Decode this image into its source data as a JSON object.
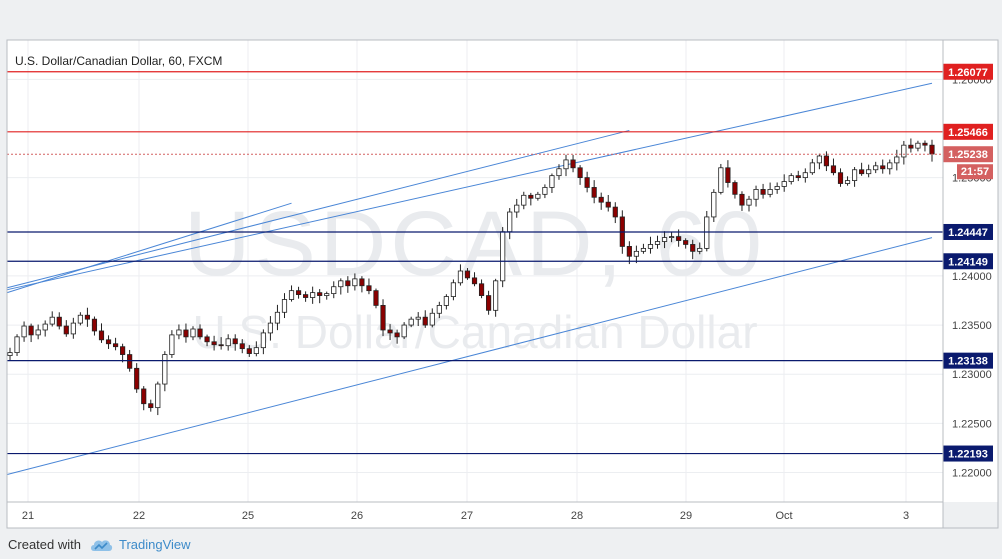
{
  "chart_data": {
    "type": "candlestick",
    "title": "U.S. Dollar/Canadian Dollar, 60, FXCM",
    "watermark": {
      "symbol": "USDCAD, 60",
      "description": "U.S. Dollar/Canadian Dollar"
    },
    "ylim": [
      1.217,
      1.264
    ],
    "y_ticks": [
      "1.22000",
      "1.22500",
      "1.23000",
      "1.23500",
      "1.24000",
      "1.25000",
      "1.26000"
    ],
    "x_ticks": [
      "21",
      "22",
      "25",
      "26",
      "27",
      "28",
      "29",
      "Oct",
      "3"
    ],
    "horizontal_levels": [
      {
        "value": 1.26077,
        "label": "1.26077",
        "color": "#e02020"
      },
      {
        "value": 1.25466,
        "label": "1.25466",
        "color": "#e02020"
      },
      {
        "value": 1.24447,
        "label": "1.24447",
        "color": "#0a1a6e"
      },
      {
        "value": 1.24149,
        "label": "1.24149",
        "color": "#0a1a6e"
      },
      {
        "value": 1.23138,
        "label": "1.23138",
        "color": "#0a1a6e"
      },
      {
        "value": 1.22193,
        "label": "1.22193",
        "color": "#0a1a6e"
      }
    ],
    "last_price": {
      "value": 1.25238,
      "label": "1.25238",
      "countdown": "21:57",
      "color": "#d46060"
    },
    "grid": true,
    "colors": {
      "bull": "#ffffff",
      "bear": "#8b0000",
      "trendline": "#4a86d6"
    },
    "series_anchors": [
      [
        0,
        1.2322
      ],
      [
        1,
        1.2338
      ],
      [
        2,
        1.2349
      ],
      [
        3,
        1.234
      ],
      [
        4,
        1.2345
      ],
      [
        5,
        1.2351
      ],
      [
        6,
        1.2358
      ],
      [
        7,
        1.2349
      ],
      [
        8,
        1.2341
      ],
      [
        9,
        1.2352
      ],
      [
        10,
        1.236
      ],
      [
        11,
        1.2356
      ],
      [
        12,
        1.2344
      ],
      [
        13,
        1.2335
      ],
      [
        14,
        1.2331
      ],
      [
        15,
        1.2328
      ],
      [
        16,
        1.232
      ],
      [
        17,
        1.2306
      ],
      [
        18,
        1.2285
      ],
      [
        19,
        1.227
      ],
      [
        20,
        1.2266
      ],
      [
        21,
        1.229
      ],
      [
        22,
        1.232
      ],
      [
        23,
        1.234
      ],
      [
        24,
        1.2345
      ],
      [
        25,
        1.2338
      ],
      [
        26,
        1.2346
      ],
      [
        27,
        1.2338
      ],
      [
        28,
        1.2333
      ],
      [
        29,
        1.233
      ],
      [
        30,
        1.2329
      ],
      [
        31,
        1.2336
      ],
      [
        32,
        1.2331
      ],
      [
        33,
        1.2326
      ],
      [
        34,
        1.2321
      ],
      [
        35,
        1.2327
      ],
      [
        36,
        1.2342
      ],
      [
        37,
        1.2352
      ],
      [
        38,
        1.2363
      ],
      [
        39,
        1.2376
      ],
      [
        40,
        1.2385
      ],
      [
        41,
        1.2381
      ],
      [
        42,
        1.2378
      ],
      [
        43,
        1.2383
      ],
      [
        44,
        1.238
      ],
      [
        45,
        1.2382
      ],
      [
        46,
        1.2389
      ],
      [
        47,
        1.2395
      ],
      [
        48,
        1.239
      ],
      [
        49,
        1.2397
      ],
      [
        50,
        1.239
      ],
      [
        51,
        1.2385
      ],
      [
        52,
        1.237
      ],
      [
        53,
        1.2345
      ],
      [
        54,
        1.2342
      ],
      [
        55,
        1.2338
      ],
      [
        56,
        1.235
      ],
      [
        57,
        1.2356
      ],
      [
        58,
        1.2358
      ],
      [
        59,
        1.235
      ],
      [
        60,
        1.2362
      ],
      [
        61,
        1.237
      ],
      [
        62,
        1.2379
      ],
      [
        63,
        1.2393
      ],
      [
        64,
        1.2405
      ],
      [
        65,
        1.2398
      ],
      [
        66,
        1.2392
      ],
      [
        67,
        1.238
      ],
      [
        68,
        1.2365
      ],
      [
        69,
        1.2395
      ],
      [
        70,
        1.2445
      ],
      [
        71,
        1.2465
      ],
      [
        72,
        1.2472
      ],
      [
        73,
        1.2482
      ],
      [
        74,
        1.2479
      ],
      [
        75,
        1.2483
      ],
      [
        76,
        1.249
      ],
      [
        77,
        1.2502
      ],
      [
        78,
        1.2509
      ],
      [
        79,
        1.2518
      ],
      [
        80,
        1.251
      ],
      [
        81,
        1.25
      ],
      [
        82,
        1.249
      ],
      [
        83,
        1.248
      ],
      [
        84,
        1.2475
      ],
      [
        85,
        1.247
      ],
      [
        86,
        1.246
      ],
      [
        87,
        1.243
      ],
      [
        88,
        1.242
      ],
      [
        89,
        1.2425
      ],
      [
        90,
        1.2428
      ],
      [
        91,
        1.2432
      ],
      [
        92,
        1.2435
      ],
      [
        93,
        1.2439
      ],
      [
        94,
        1.244
      ],
      [
        95,
        1.2436
      ],
      [
        96,
        1.2432
      ],
      [
        97,
        1.2425
      ],
      [
        98,
        1.2428
      ],
      [
        99,
        1.246
      ],
      [
        100,
        1.2485
      ],
      [
        101,
        1.251
      ],
      [
        102,
        1.2495
      ],
      [
        103,
        1.2483
      ],
      [
        104,
        1.2472
      ],
      [
        105,
        1.2478
      ],
      [
        106,
        1.2488
      ],
      [
        107,
        1.2483
      ],
      [
        108,
        1.2488
      ],
      [
        109,
        1.2491
      ],
      [
        110,
        1.2496
      ],
      [
        111,
        1.2502
      ],
      [
        112,
        1.25
      ],
      [
        113,
        1.2505
      ],
      [
        114,
        1.2515
      ],
      [
        115,
        1.2522
      ],
      [
        116,
        1.2512
      ],
      [
        117,
        1.2505
      ],
      [
        118,
        1.2494
      ],
      [
        119,
        1.2497
      ],
      [
        120,
        1.2508
      ],
      [
        121,
        1.2504
      ],
      [
        122,
        1.2508
      ],
      [
        123,
        1.2512
      ],
      [
        124,
        1.2509
      ],
      [
        125,
        1.2515
      ],
      [
        126,
        1.2521
      ],
      [
        127,
        1.2533
      ],
      [
        128,
        1.253
      ],
      [
        129,
        1.2535
      ],
      [
        130,
        1.2533
      ],
      [
        131,
        1.2524
      ]
    ]
  },
  "footer": {
    "created_with": "Created with",
    "brand": "TradingView"
  }
}
